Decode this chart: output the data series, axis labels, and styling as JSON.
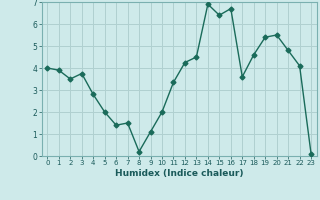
{
  "x": [
    0,
    1,
    2,
    3,
    4,
    5,
    6,
    7,
    8,
    9,
    10,
    11,
    12,
    13,
    14,
    15,
    16,
    17,
    18,
    19,
    20,
    21,
    22,
    23
  ],
  "y": [
    4.0,
    3.9,
    3.5,
    3.75,
    2.8,
    2.0,
    1.4,
    1.5,
    0.2,
    1.1,
    2.0,
    3.35,
    4.25,
    4.5,
    6.9,
    6.4,
    6.7,
    3.6,
    4.6,
    5.4,
    5.5,
    4.8,
    4.1,
    0.1
  ],
  "line_color": "#1a6b5a",
  "marker": "D",
  "marker_size": 2.5,
  "bg_color": "#ceeaea",
  "grid_color": "#b0d0d0",
  "xlabel": "Humidex (Indice chaleur)",
  "xlim": [
    -0.5,
    23.5
  ],
  "ylim": [
    0,
    7
  ],
  "xticks": [
    0,
    1,
    2,
    3,
    4,
    5,
    6,
    7,
    8,
    9,
    10,
    11,
    12,
    13,
    14,
    15,
    16,
    17,
    18,
    19,
    20,
    21,
    22,
    23
  ],
  "yticks": [
    0,
    1,
    2,
    3,
    4,
    5,
    6,
    7
  ],
  "xticklabels": [
    "0",
    "1",
    "2",
    "3",
    "4",
    "5",
    "6",
    "7",
    "8",
    "9",
    "10",
    "11",
    "12",
    "13",
    "14",
    "15",
    "16",
    "17",
    "18",
    "19",
    "20",
    "21",
    "22",
    "23"
  ],
  "yticklabels": [
    "0",
    "1",
    "2",
    "3",
    "4",
    "5",
    "6",
    "7"
  ]
}
